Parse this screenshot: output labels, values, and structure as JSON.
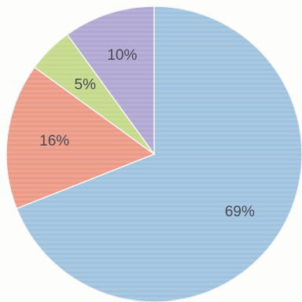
{
  "chart_data": {
    "type": "pie",
    "start_angle_deg": 0,
    "direction": "clockwise",
    "legend": "none",
    "slices": [
      {
        "label": "69%",
        "value": 69,
        "color": "#9fc3df"
      },
      {
        "label": "16%",
        "value": 16,
        "color": "#ec9a86"
      },
      {
        "label": "5%",
        "value": 5,
        "color": "#c4d98a"
      },
      {
        "label": "10%",
        "value": 10,
        "color": "#b1a7d3"
      }
    ]
  }
}
